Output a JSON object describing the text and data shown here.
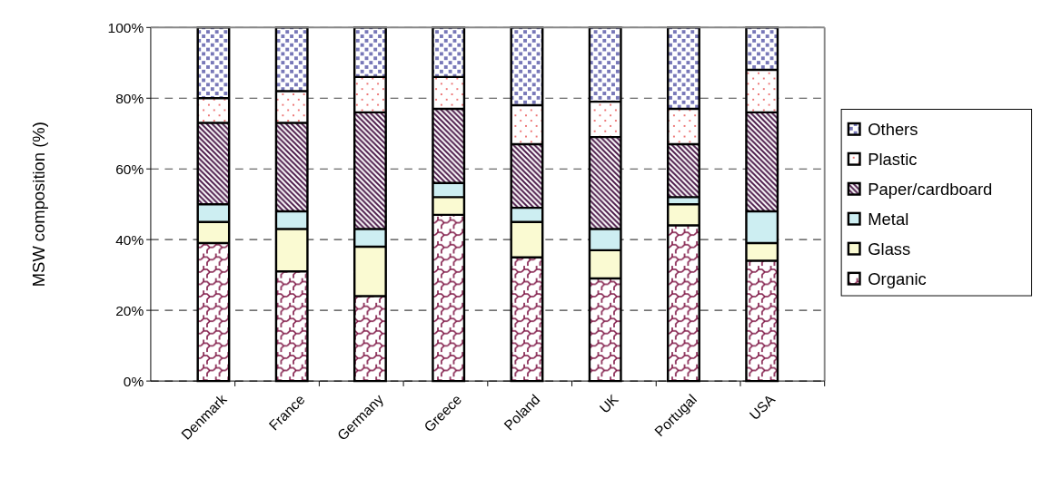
{
  "chart_data": {
    "type": "bar",
    "stacked": true,
    "ylabel": "MSW composition (%)",
    "categories": [
      "Denmark",
      "France",
      "Germany",
      "Greece",
      "Poland",
      "UK",
      "Portugal",
      "USA"
    ],
    "series": [
      {
        "name": "Organic",
        "color": "#7b1040",
        "values": [
          39,
          31,
          24,
          47,
          35,
          29,
          44,
          34
        ]
      },
      {
        "name": "Glass",
        "color": "#fafad2",
        "values": [
          6,
          12,
          14,
          5,
          10,
          8,
          6,
          5
        ]
      },
      {
        "name": "Metal",
        "color": "#cdeef2",
        "values": [
          5,
          5,
          5,
          4,
          4,
          6,
          2,
          9
        ]
      },
      {
        "name": "Paper/cardboard",
        "color": "#4a1848",
        "values": [
          23,
          25,
          33,
          21,
          18,
          26,
          15,
          28
        ]
      },
      {
        "name": "Plastic",
        "color": "#e84848",
        "values": [
          7,
          9,
          10,
          9,
          11,
          10,
          10,
          12
        ]
      },
      {
        "name": "Others",
        "color": "#7878b8",
        "values": [
          20,
          18,
          14,
          14,
          22,
          21,
          23,
          12
        ]
      }
    ],
    "ylim": [
      0,
      100
    ],
    "yticks": [
      {
        "value": 0,
        "label": "0%"
      },
      {
        "value": 20,
        "label": "20%"
      },
      {
        "value": 40,
        "label": "40%"
      },
      {
        "value": 60,
        "label": "60%"
      },
      {
        "value": 80,
        "label": "80%"
      },
      {
        "value": 100,
        "label": "100%"
      }
    ],
    "grid": "y",
    "legend": "right"
  }
}
